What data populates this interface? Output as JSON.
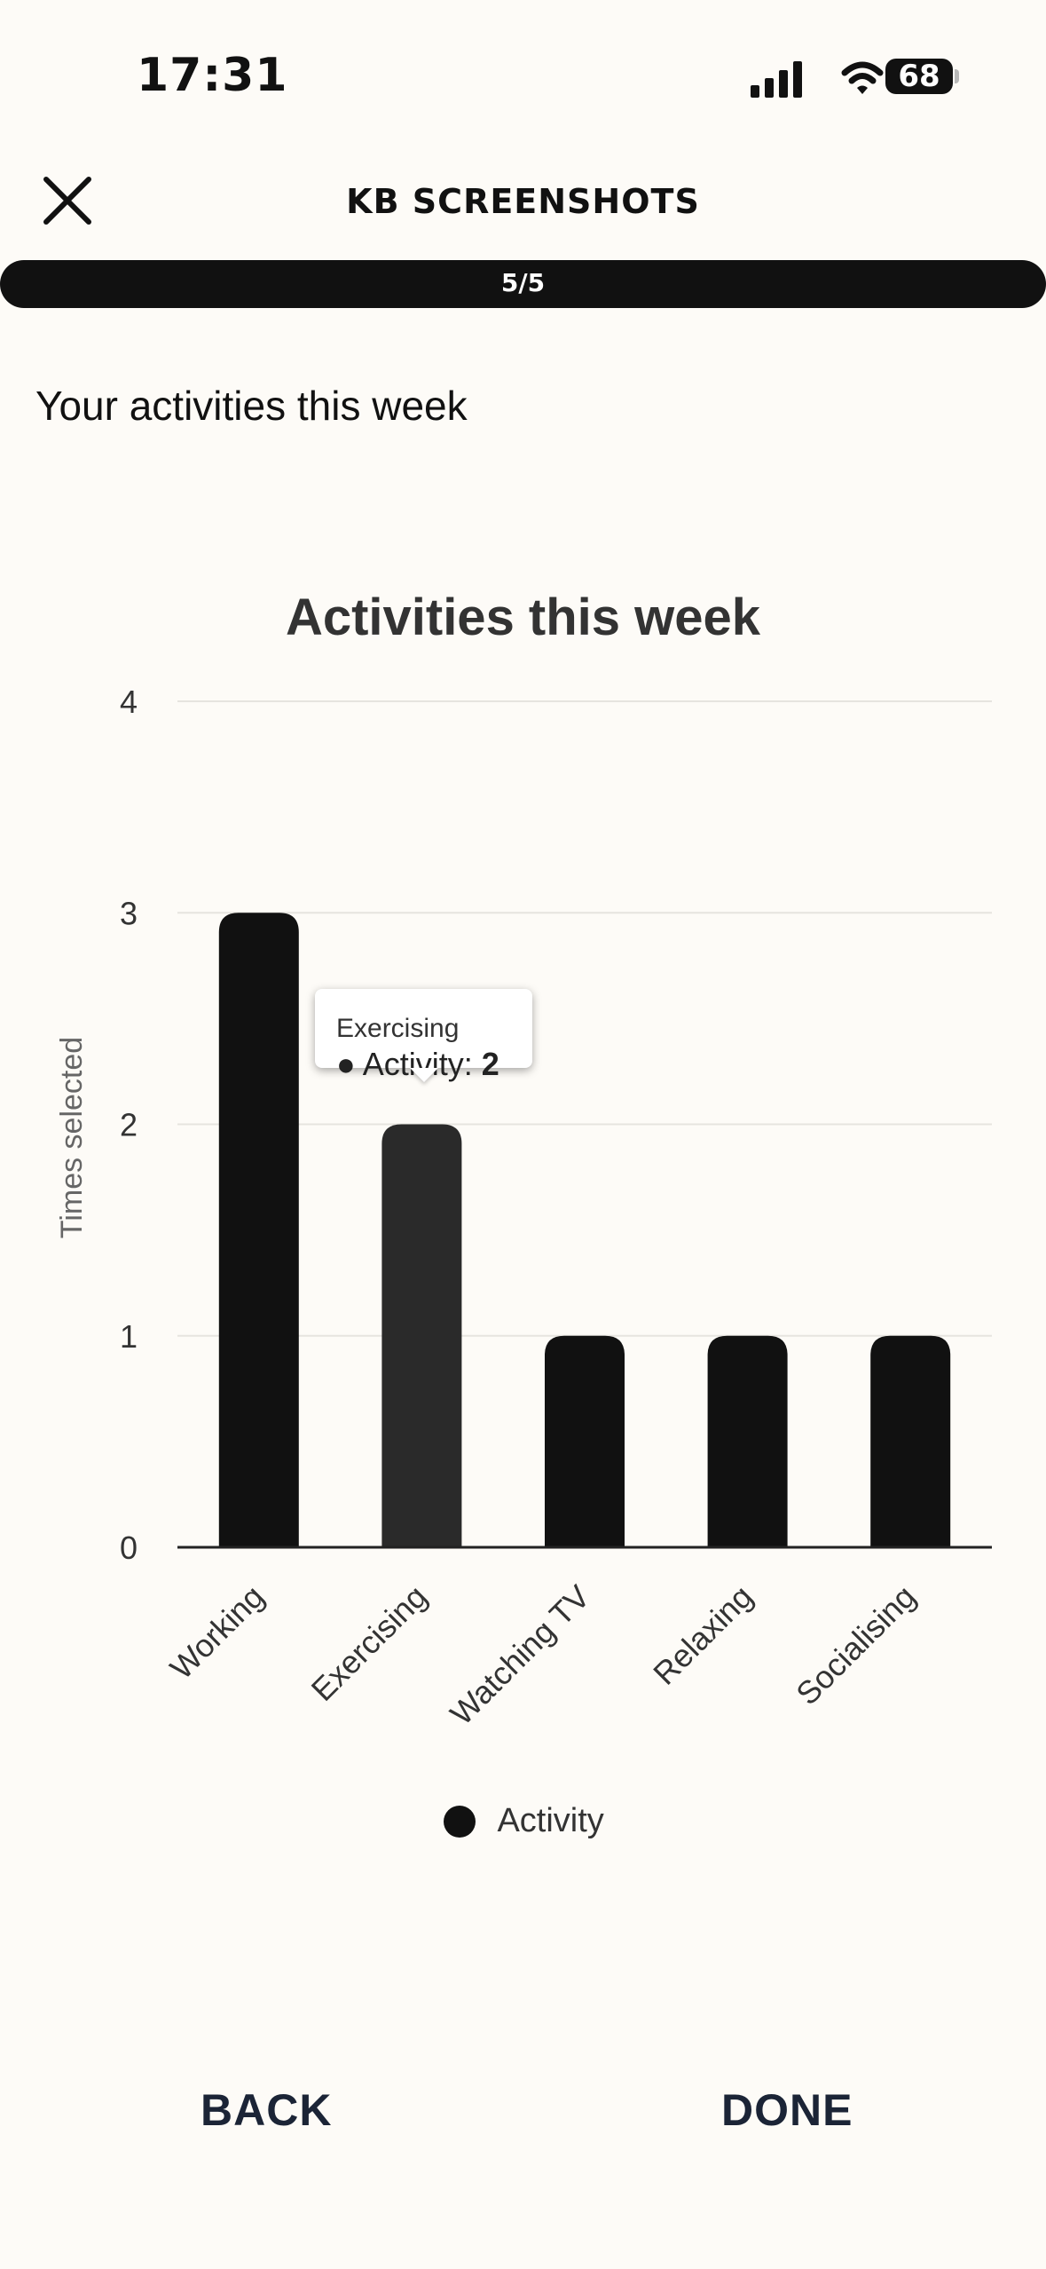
{
  "status_bar": {
    "time": "17:31",
    "battery": "68",
    "signal_icon": "cellular-signal-icon",
    "wifi_icon": "wifi-icon"
  },
  "header": {
    "close_icon": "close-icon",
    "title": "KB SCREENSHOTS"
  },
  "progress": {
    "label": "5/5",
    "value": 1.0
  },
  "main": {
    "heading": "Your activities this week"
  },
  "chart_data": {
    "type": "bar",
    "title": "Activities this week",
    "categories": [
      "Working",
      "Exercising",
      "Watching TV",
      "Relaxing",
      "Socialising"
    ],
    "series": [
      {
        "name": "Activity",
        "values": [
          3,
          2,
          1,
          1,
          1
        ],
        "color": "#111111"
      }
    ],
    "xlabel": "",
    "ylabel": "Times selected",
    "ylim": [
      0,
      4
    ],
    "yticks": [
      0,
      1,
      2,
      3,
      4
    ],
    "grid": true,
    "legend_position": "bottom",
    "highlighted_category": "Exercising",
    "highlight_color": "#2a2a2a",
    "tooltip": {
      "category": "Exercising",
      "series": "Activity",
      "value": "2"
    }
  },
  "footer": {
    "back_label": "BACK",
    "done_label": "DONE"
  }
}
